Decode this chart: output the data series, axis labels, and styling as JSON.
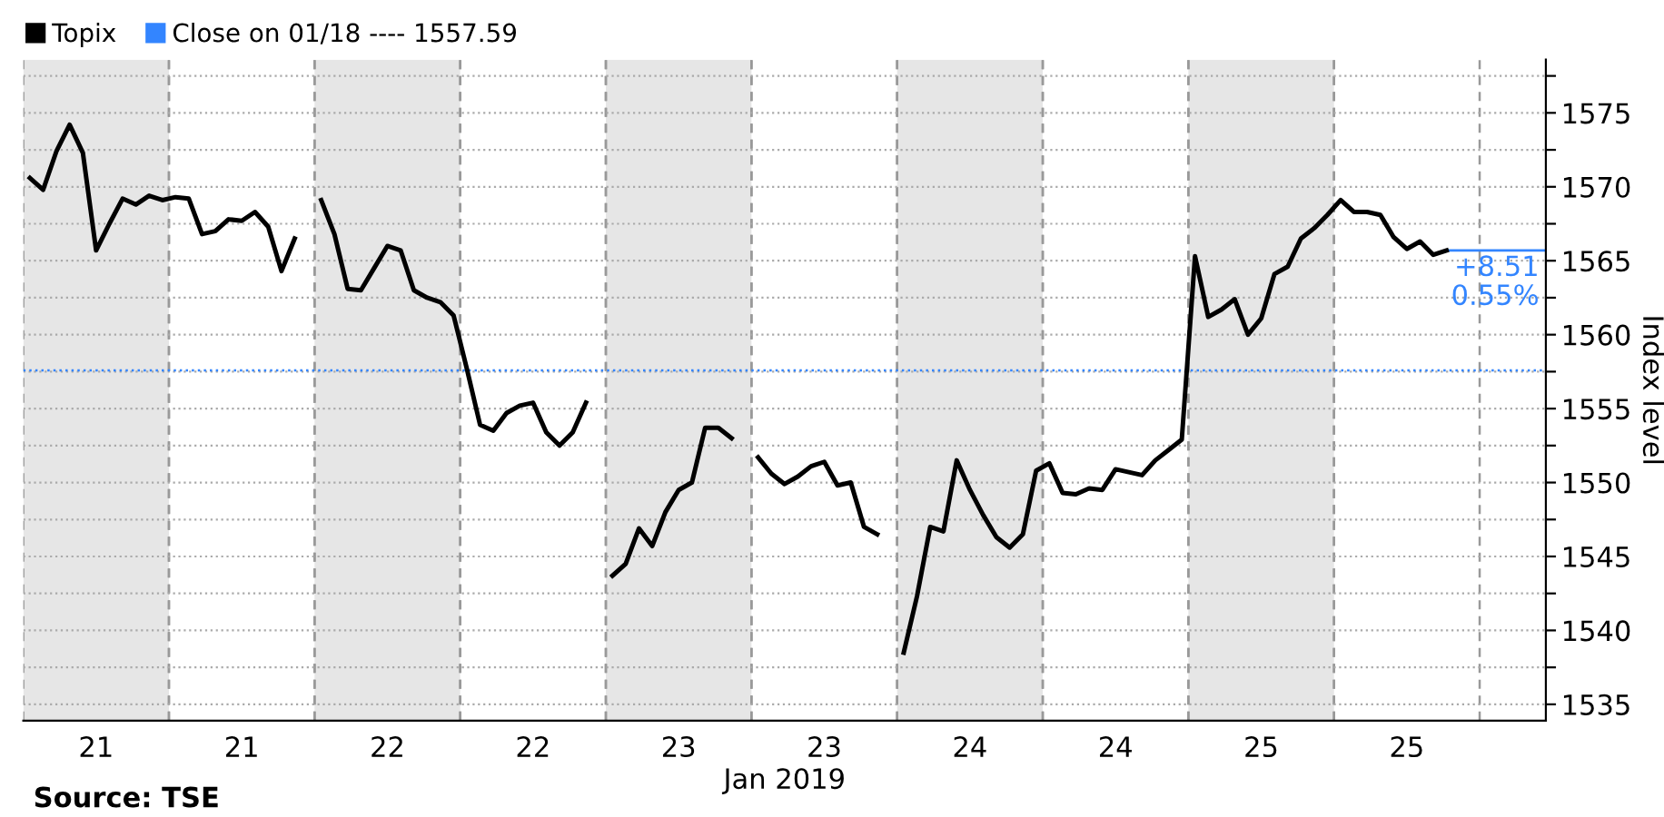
{
  "chart_data": {
    "type": "line",
    "xlabel": "Jan 2019",
    "ylabel": "Index level",
    "categories": [
      null,
      null,
      null,
      null,
      null,
      "21",
      null,
      null,
      null,
      null,
      null,
      null,
      null,
      null,
      null,
      null,
      "21",
      null,
      null,
      null,
      null,
      null,
      null,
      null,
      null,
      null,
      null,
      "22",
      null,
      null,
      null,
      null,
      null,
      null,
      null,
      null,
      null,
      null,
      "22",
      null,
      null,
      null,
      null,
      null,
      null,
      null,
      null,
      null,
      null,
      "23",
      null,
      null,
      null,
      null,
      null,
      null,
      null,
      null,
      null,
      null,
      "23",
      null,
      null,
      null,
      null,
      null,
      null,
      null,
      null,
      null,
      null,
      "24",
      null,
      null,
      null,
      null,
      null,
      null,
      null,
      null,
      null,
      null,
      "24",
      null,
      null,
      null,
      null,
      null,
      null,
      null,
      null,
      null,
      null,
      "25",
      null,
      null,
      null,
      null,
      null,
      null,
      null,
      null,
      null,
      null,
      "25",
      null,
      null,
      null,
      null,
      null,
      null,
      null,
      null,
      null,
      null
    ],
    "ylim": [
      1533.9,
      1578.6
    ],
    "yticks": [
      1535,
      {
        "value": 1537.5,
        "label": null
      },
      1540,
      {
        "value": 1542.5,
        "label": null
      },
      1545,
      {
        "value": 1547.5,
        "label": null
      },
      1550,
      {
        "value": 1552.5,
        "label": null
      },
      1555,
      {
        "value": 1557.5,
        "label": null
      },
      1560,
      {
        "value": 1562.5,
        "label": null
      },
      1565,
      {
        "value": 1567.5,
        "label": null
      },
      1570,
      {
        "value": 1572.5,
        "label": null
      },
      1575,
      {
        "value": 1577.5,
        "label": null
      }
    ],
    "grid": "y",
    "legend": "top left",
    "series": [
      {
        "name": "Topix",
        "color": "#000000",
        "values": [
          1570.6,
          1569.8,
          1572.4,
          1574.2,
          1572.3,
          1565.7,
          1567.5,
          1569.2,
          1568.8,
          1569.4,
          1569.1,
          1569.3,
          1569.2,
          1566.8,
          1567.0,
          1567.8,
          1567.7,
          1568.3,
          1567.3,
          1564.3,
          1566.5,
          null,
          1569.1,
          1566.8,
          1563.1,
          1563.0,
          1564.5,
          1566.0,
          1565.7,
          1563.0,
          1562.5,
          1562.2,
          1561.3,
          1557.7,
          1553.9,
          1553.5,
          1554.7,
          1555.2,
          1555.4,
          1553.4,
          1552.5,
          1553.4,
          1555.4,
          null,
          1543.7,
          1544.5,
          1546.9,
          1545.7,
          1548.0,
          1549.5,
          1550.0,
          1553.7,
          1553.7,
          1553.0,
          null,
          1551.7,
          1550.6,
          1549.9,
          1550.4,
          1551.1,
          1551.4,
          1549.8,
          1550.0,
          1547.0,
          1546.5,
          null,
          1538.5,
          1542.3,
          1547.0,
          1546.7,
          1551.5,
          1549.5,
          1547.8,
          1546.3,
          1545.6,
          1546.5,
          1550.8,
          1551.3,
          1549.3,
          1549.2,
          1549.6,
          1549.5,
          1550.9,
          1550.7,
          1550.5,
          1551.5,
          1552.2,
          1552.9,
          1565.3,
          1561.2,
          1561.7,
          1562.4,
          1560.0,
          1561.1,
          1564.1,
          1564.6,
          1566.5,
          1567.2,
          1568.1,
          1569.1,
          1568.3,
          1568.3,
          1568.1,
          1566.6,
          1565.8,
          1566.3,
          1565.4,
          1565.7,
          null,
          null,
          null,
          null,
          null,
          null,
          null
        ]
      }
    ],
    "ref_lines": [
      {
        "axis": "y",
        "value": 1557.59,
        "label": "Close on 01/18 ---- 1557.59",
        "color": "#3385ff",
        "line_style": "dotted"
      }
    ],
    "annotations": [
      "+8.51\n0.55%",
      "Source: TSE"
    ]
  }
}
